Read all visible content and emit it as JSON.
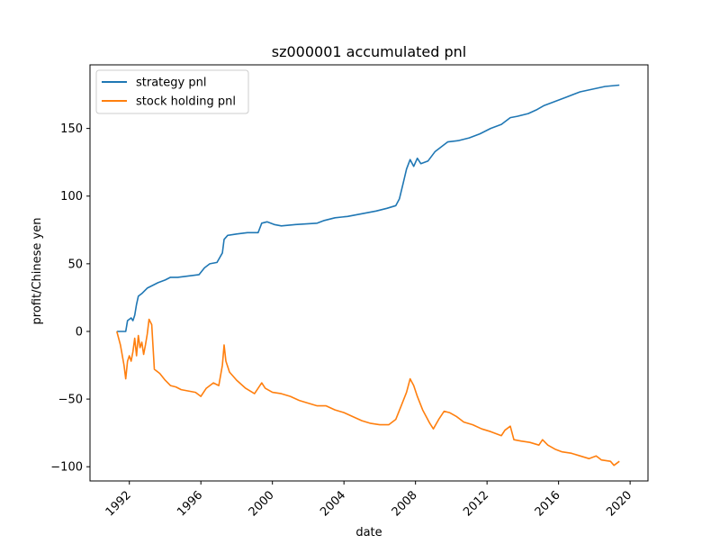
{
  "chart_data": {
    "type": "line",
    "title": "sz000001 accumulated pnl",
    "xlabel": "date",
    "ylabel": "profit/Chinese yen",
    "xlim": [
      1989.8,
      2021.0
    ],
    "ylim": [
      -110.5,
      197.0
    ],
    "x_ticks": [
      1992,
      1996,
      2000,
      2004,
      2008,
      2012,
      2016,
      2020
    ],
    "x_tick_labels": [
      "1992",
      "1996",
      "2000",
      "2004",
      "2008",
      "2012",
      "2016",
      "2020"
    ],
    "y_ticks": [
      -100,
      -50,
      0,
      50,
      100,
      150
    ],
    "y_tick_labels": [
      "−100",
      "−50",
      "0",
      "50",
      "100",
      "150"
    ],
    "legend_position": "upper-left",
    "grid": false,
    "series": [
      {
        "name": "strategy pnl",
        "color": "#1f77b4",
        "points": [
          [
            1991.3,
            0
          ],
          [
            1991.8,
            0
          ],
          [
            1991.9,
            8
          ],
          [
            1992.1,
            10
          ],
          [
            1992.2,
            8
          ],
          [
            1992.3,
            12
          ],
          [
            1992.4,
            20
          ],
          [
            1992.5,
            26
          ],
          [
            1992.7,
            28
          ],
          [
            1993.0,
            32
          ],
          [
            1993.3,
            34
          ],
          [
            1993.6,
            36
          ],
          [
            1994.0,
            38
          ],
          [
            1994.3,
            40
          ],
          [
            1994.7,
            40
          ],
          [
            1995.3,
            41
          ],
          [
            1995.9,
            42
          ],
          [
            1996.2,
            47
          ],
          [
            1996.5,
            50
          ],
          [
            1996.9,
            51
          ],
          [
            1997.2,
            58
          ],
          [
            1997.3,
            68
          ],
          [
            1997.5,
            71
          ],
          [
            1998.0,
            72
          ],
          [
            1998.6,
            73
          ],
          [
            1999.2,
            73
          ],
          [
            1999.4,
            80
          ],
          [
            1999.7,
            81
          ],
          [
            2000.1,
            79
          ],
          [
            2000.5,
            78
          ],
          [
            2001.3,
            79
          ],
          [
            2002.5,
            80
          ],
          [
            2002.9,
            82
          ],
          [
            2003.5,
            84
          ],
          [
            2004.2,
            85
          ],
          [
            2005.0,
            87
          ],
          [
            2005.8,
            89
          ],
          [
            2006.4,
            91
          ],
          [
            2006.9,
            93
          ],
          [
            2007.1,
            98
          ],
          [
            2007.3,
            109
          ],
          [
            2007.5,
            120
          ],
          [
            2007.7,
            127
          ],
          [
            2007.9,
            122
          ],
          [
            2008.1,
            128
          ],
          [
            2008.3,
            124
          ],
          [
            2008.7,
            126
          ],
          [
            2009.1,
            133
          ],
          [
            2009.5,
            137
          ],
          [
            2009.8,
            140
          ],
          [
            2010.4,
            141
          ],
          [
            2011.0,
            143
          ],
          [
            2011.6,
            146
          ],
          [
            2012.2,
            150
          ],
          [
            2012.8,
            153
          ],
          [
            2013.3,
            158
          ],
          [
            2013.7,
            159
          ],
          [
            2014.3,
            161
          ],
          [
            2014.8,
            164
          ],
          [
            2015.2,
            167
          ],
          [
            2015.6,
            169
          ],
          [
            2016.4,
            173
          ],
          [
            2017.2,
            177
          ],
          [
            2017.9,
            179
          ],
          [
            2018.6,
            181
          ],
          [
            2019.4,
            182
          ]
        ]
      },
      {
        "name": "stock holding pnl",
        "color": "#ff7f0e",
        "points": [
          [
            1991.3,
            0
          ],
          [
            1991.5,
            -10
          ],
          [
            1991.7,
            -25
          ],
          [
            1991.8,
            -35
          ],
          [
            1991.9,
            -22
          ],
          [
            1992.0,
            -18
          ],
          [
            1992.1,
            -22
          ],
          [
            1992.2,
            -15
          ],
          [
            1992.3,
            -5
          ],
          [
            1992.4,
            -18
          ],
          [
            1992.5,
            -3
          ],
          [
            1992.6,
            -12
          ],
          [
            1992.7,
            -8
          ],
          [
            1992.8,
            -17
          ],
          [
            1992.9,
            -10
          ],
          [
            1993.0,
            -2
          ],
          [
            1993.1,
            9
          ],
          [
            1993.25,
            5
          ],
          [
            1993.4,
            -28
          ],
          [
            1993.7,
            -31
          ],
          [
            1994.0,
            -36
          ],
          [
            1994.3,
            -40
          ],
          [
            1994.6,
            -41
          ],
          [
            1994.9,
            -43
          ],
          [
            1995.3,
            -44
          ],
          [
            1995.7,
            -45
          ],
          [
            1996.0,
            -48
          ],
          [
            1996.3,
            -42
          ],
          [
            1996.7,
            -38
          ],
          [
            1997.0,
            -40
          ],
          [
            1997.2,
            -25
          ],
          [
            1997.3,
            -10
          ],
          [
            1997.4,
            -22
          ],
          [
            1997.6,
            -30
          ],
          [
            1998.0,
            -36
          ],
          [
            1998.5,
            -42
          ],
          [
            1999.0,
            -46
          ],
          [
            1999.4,
            -38
          ],
          [
            1999.6,
            -42
          ],
          [
            2000.0,
            -45
          ],
          [
            2000.5,
            -46
          ],
          [
            2001.0,
            -48
          ],
          [
            2001.5,
            -51
          ],
          [
            2002.0,
            -53
          ],
          [
            2002.5,
            -55
          ],
          [
            2003.0,
            -55
          ],
          [
            2003.5,
            -58
          ],
          [
            2004.0,
            -60
          ],
          [
            2004.5,
            -63
          ],
          [
            2005.0,
            -66
          ],
          [
            2005.5,
            -68
          ],
          [
            2006.0,
            -69
          ],
          [
            2006.5,
            -69
          ],
          [
            2006.9,
            -65
          ],
          [
            2007.2,
            -55
          ],
          [
            2007.5,
            -45
          ],
          [
            2007.7,
            -35
          ],
          [
            2007.9,
            -40
          ],
          [
            2008.1,
            -48
          ],
          [
            2008.4,
            -58
          ],
          [
            2008.8,
            -68
          ],
          [
            2009.0,
            -72
          ],
          [
            2009.3,
            -65
          ],
          [
            2009.6,
            -59
          ],
          [
            2009.9,
            -60
          ],
          [
            2010.3,
            -63
          ],
          [
            2010.7,
            -67
          ],
          [
            2011.2,
            -69
          ],
          [
            2011.7,
            -72
          ],
          [
            2012.2,
            -74
          ],
          [
            2012.8,
            -77
          ],
          [
            2013.0,
            -73
          ],
          [
            2013.3,
            -70
          ],
          [
            2013.5,
            -80
          ],
          [
            2013.9,
            -81
          ],
          [
            2014.4,
            -82
          ],
          [
            2014.9,
            -84
          ],
          [
            2015.1,
            -80
          ],
          [
            2015.4,
            -84
          ],
          [
            2015.8,
            -87
          ],
          [
            2016.2,
            -89
          ],
          [
            2016.7,
            -90
          ],
          [
            2017.2,
            -92
          ],
          [
            2017.7,
            -94
          ],
          [
            2018.1,
            -92
          ],
          [
            2018.4,
            -95
          ],
          [
            2018.9,
            -96
          ],
          [
            2019.1,
            -99
          ],
          [
            2019.4,
            -96
          ]
        ]
      }
    ]
  }
}
